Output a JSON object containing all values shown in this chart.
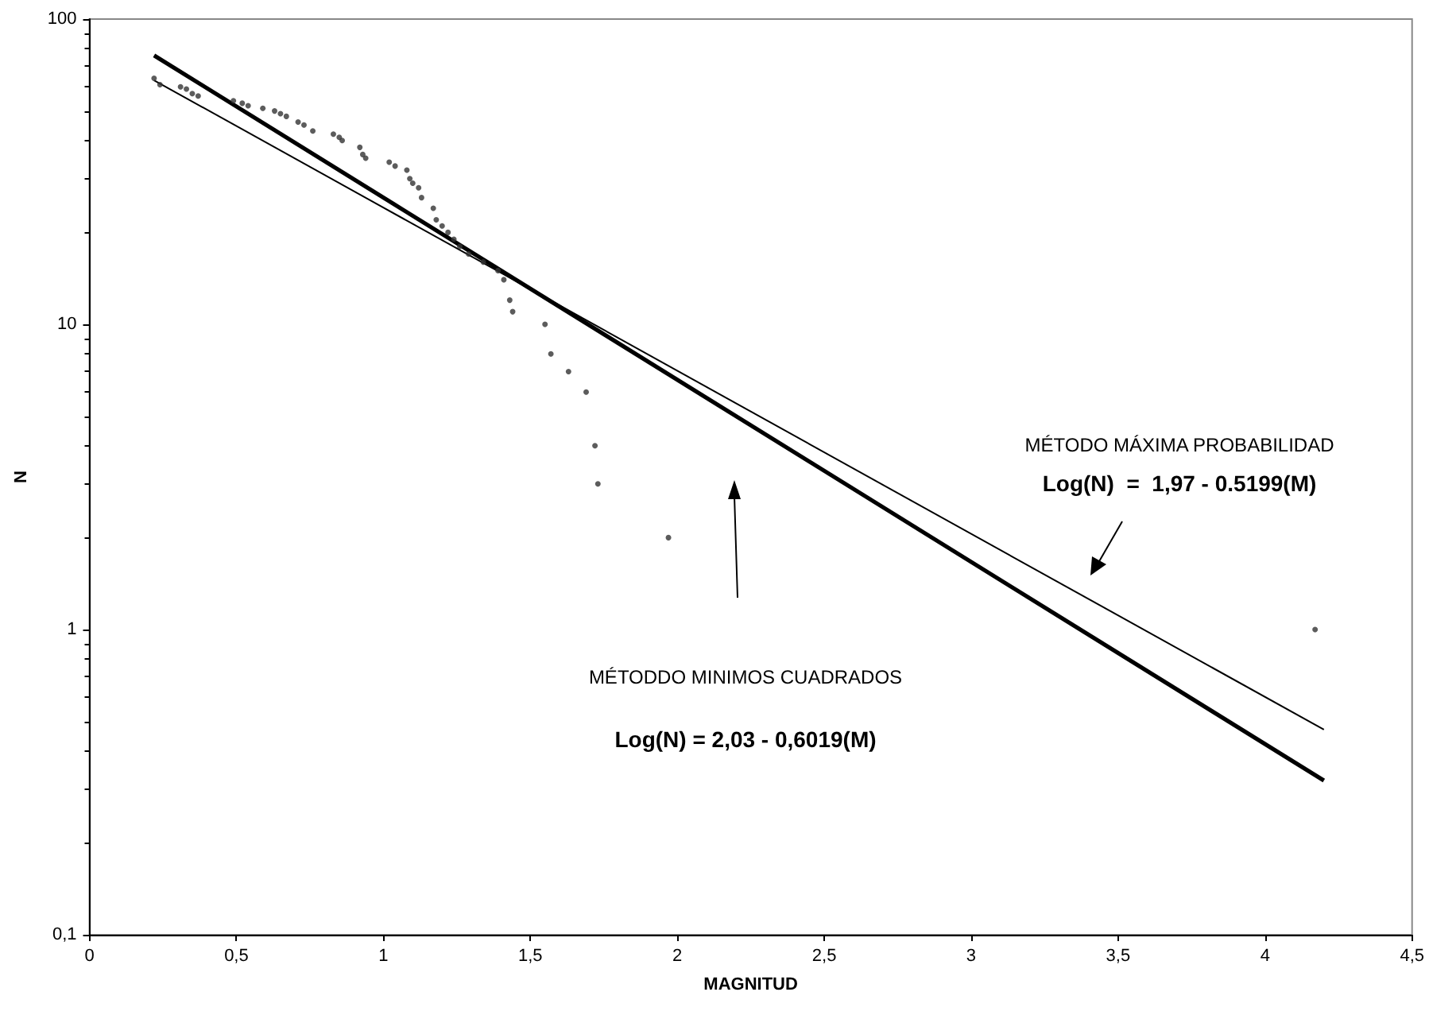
{
  "chart_data": {
    "type": "scatter",
    "xlabel": "MAGNITUD",
    "ylabel": "N",
    "log": "y",
    "grid": false,
    "xlim": [
      0,
      4.5
    ],
    "xticks": [
      0,
      {
        "value": 0.5,
        "label": "0,5"
      },
      1,
      {
        "value": 1.5,
        "label": "1,5"
      },
      2,
      {
        "value": 2.5,
        "label": "2,5"
      },
      3,
      {
        "value": 3.5,
        "label": "3,5"
      },
      4,
      {
        "value": 4.5,
        "label": "4,5"
      }
    ],
    "ylim": [
      0.1,
      100
    ],
    "yticks": [
      {
        "value": 0.1,
        "label": "0,1"
      },
      1,
      10,
      100
    ],
    "series": [
      {
        "marker": "circle",
        "color": "#333333",
        "x": [
          0.22,
          0.24,
          0.31,
          0.33,
          0.35,
          0.37,
          0.49,
          0.52,
          0.54,
          0.59,
          0.63,
          0.65,
          0.67,
          0.71,
          0.73,
          0.76,
          0.83,
          0.85,
          0.86,
          0.92,
          0.93,
          0.94,
          1.02,
          1.04,
          1.08,
          1.09,
          1.1,
          1.12,
          1.13,
          1.17,
          1.18,
          1.2,
          1.22,
          1.24,
          1.26,
          1.29,
          1.34,
          1.39,
          1.41,
          1.43,
          1.44,
          1.55,
          1.57,
          1.63,
          1.69,
          1.72,
          1.73,
          1.97,
          4.17
        ],
        "values": [
          64,
          61,
          60,
          59,
          57,
          56,
          54,
          53,
          52,
          51,
          50,
          49,
          48,
          46,
          45,
          43,
          42,
          41,
          40,
          38,
          36,
          35,
          34,
          33,
          32,
          30,
          29,
          28,
          26,
          24,
          22,
          21,
          20,
          19,
          18,
          17,
          16,
          15,
          14,
          12,
          11,
          10,
          8,
          7,
          6,
          4,
          3,
          2,
          1
        ]
      },
      {
        "type": "line",
        "marker": "none",
        "color": "#000000",
        "x": [
          0.22,
          4.2
        ],
        "values": [
          76,
          0.32
        ]
      },
      {
        "type": "line",
        "marker": "none",
        "color": "#000000",
        "x": [
          0.22,
          4.2
        ],
        "values": [
          63,
          0.47
        ]
      }
    ],
    "annotations": [
      "MÉTODO MÁXIMA PROBABILIDAD",
      "Log(N)  =  1,97 - 0.5199(M)",
      "MÉTODDO MINIMOS CUADRADOS",
      "Log(N) = 2,03 - 0,6019(M)"
    ]
  }
}
